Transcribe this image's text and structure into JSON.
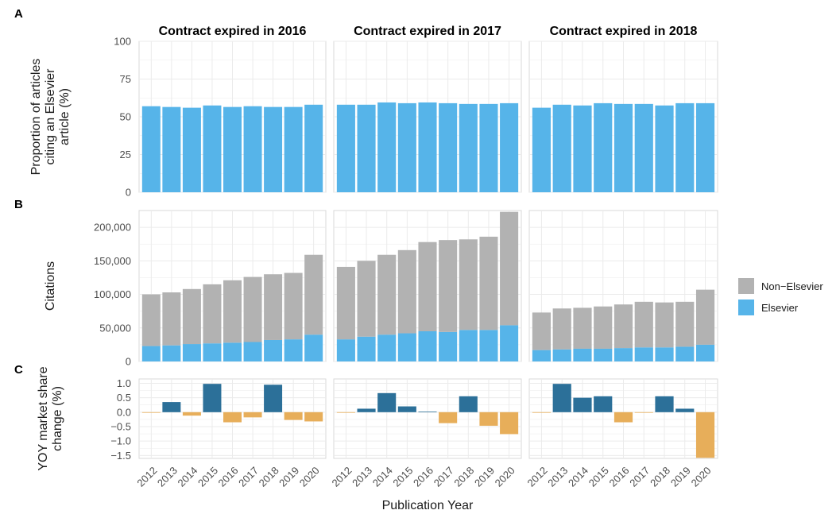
{
  "figure": {
    "panel_tags": [
      "A",
      "B",
      "C"
    ],
    "x_axis_title": "Publication Year",
    "facet_titles": [
      "Contract expired in 2016",
      "Contract expired in 2017",
      "Contract expired in 2018"
    ]
  },
  "chart_data": [
    {
      "panel": "A",
      "type": "bar",
      "ylabel_lines": [
        "Proportion of articles",
        "citing an Elsevier",
        "article (%)"
      ],
      "ylim": [
        0,
        100
      ],
      "yticks": [
        0,
        25,
        50,
        75,
        100
      ],
      "ytick_labels": [
        "0",
        "25",
        "50",
        "75",
        "100"
      ],
      "categories": [
        "2012",
        "2013",
        "2014",
        "2015",
        "2016",
        "2017",
        "2018",
        "2019",
        "2020"
      ],
      "bar_color": "#56B4E9",
      "facets": [
        {
          "values": [
            57,
            56.5,
            56,
            57.5,
            56.5,
            57,
            56.5,
            56.5,
            58
          ]
        },
        {
          "values": [
            58,
            58,
            59.5,
            59,
            59.5,
            59,
            58.5,
            58.5,
            59
          ]
        },
        {
          "values": [
            56,
            58,
            57.5,
            59,
            58.5,
            58.5,
            57.5,
            59,
            59
          ]
        }
      ]
    },
    {
      "panel": "B",
      "type": "bar",
      "stacked": true,
      "ylabel_lines": [
        "Citations"
      ],
      "ylim": [
        0,
        225000
      ],
      "yticks": [
        0,
        50000,
        100000,
        150000,
        200000
      ],
      "ytick_labels": [
        "0",
        "50,000",
        "100,000",
        "150,000",
        "200,000"
      ],
      "categories": [
        "2012",
        "2013",
        "2014",
        "2015",
        "2016",
        "2017",
        "2018",
        "2019",
        "2020"
      ],
      "series": [
        {
          "name": "Elsevier",
          "color": "#56B4E9",
          "facets": [
            [
              23000,
              24000,
              26000,
              27000,
              28000,
              29000,
              32000,
              33000,
              40000
            ],
            [
              33000,
              37000,
              40000,
              42000,
              45000,
              44000,
              47000,
              47000,
              54000
            ],
            [
              17000,
              18000,
              19000,
              19000,
              20000,
              21000,
              21000,
              22000,
              25000
            ]
          ]
        },
        {
          "name": "Non−Elsevier",
          "color": "#B2B2B2",
          "facets": [
            [
              77000,
              79000,
              82000,
              88000,
              93000,
              97000,
              98000,
              99000,
              119000
            ],
            [
              108000,
              113000,
              119000,
              124000,
              133000,
              137000,
              135000,
              139000,
              169000
            ],
            [
              56000,
              61000,
              61000,
              63000,
              65000,
              68000,
              67000,
              67000,
              82000
            ]
          ]
        }
      ],
      "legend": {
        "position": "right",
        "items": [
          "Non−Elsevier",
          "Elsevier"
        ],
        "colors": [
          "#B2B2B2",
          "#56B4E9"
        ]
      }
    },
    {
      "panel": "C",
      "type": "bar",
      "ylabel_lines": [
        "YOY market share",
        "change (%)"
      ],
      "ylim": [
        -1.6,
        1.15
      ],
      "yticks": [
        1.0,
        0.5,
        0.0,
        -0.5,
        -1.0,
        -1.5
      ],
      "ytick_labels": [
        "1.0",
        "0.5",
        "0.0",
        "−0.5",
        "−1.0",
        "−1.5"
      ],
      "categories": [
        "2012",
        "2013",
        "2014",
        "2015",
        "2016",
        "2017",
        "2018",
        "2019",
        "2020"
      ],
      "positive_color": "#2C7099",
      "negative_color": "#E7AE5A",
      "facets": [
        {
          "values": [
            -0.02,
            0.35,
            -0.12,
            0.98,
            -0.35,
            -0.18,
            0.95,
            -0.27,
            -0.32
          ]
        },
        {
          "values": [
            -0.02,
            0.12,
            0.66,
            0.2,
            0.02,
            -0.38,
            0.55,
            -0.47,
            -0.76
          ]
        },
        {
          "values": [
            -0.02,
            0.98,
            0.5,
            0.55,
            -0.35,
            -0.02,
            0.55,
            0.12,
            -1.58
          ]
        }
      ]
    }
  ]
}
